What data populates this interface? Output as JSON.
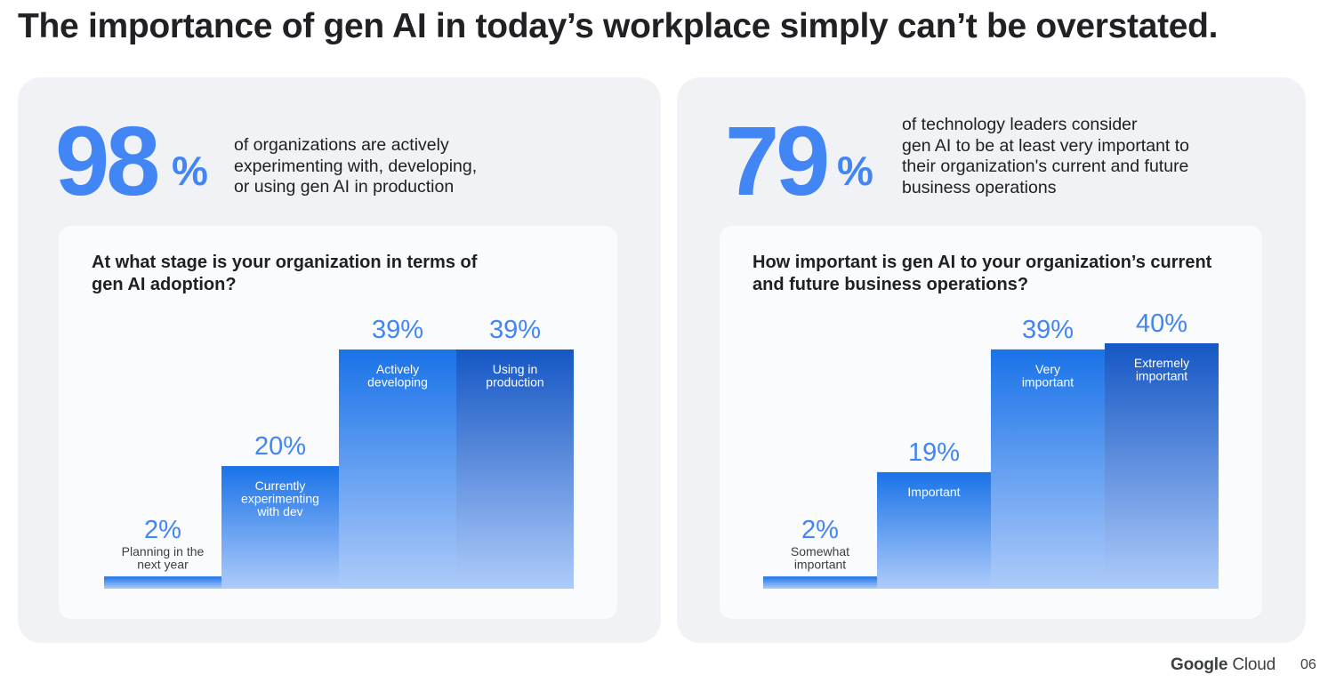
{
  "page_title": "The importance of gen AI in today’s workplace simply can’t be overstated.",
  "left_panel": {
    "stat_value": "98",
    "stat_unit": "%",
    "stat_lines": [
      "of organizations are actively",
      "experimenting with, developing,",
      "or using gen AI in production"
    ]
  },
  "right_panel": {
    "stat_value": "79",
    "stat_unit": "%",
    "stat_lines": [
      "of technology leaders consider",
      "gen AI to be at least very important to",
      "their organization's current and future",
      "business operations"
    ]
  },
  "chart_data": [
    {
      "type": "bar",
      "title_lines": [
        "At what stage is your organization in terms of",
        "gen AI adoption?"
      ],
      "categories": [
        [
          "Planning in the",
          "next year"
        ],
        [
          "Currently",
          "experimenting",
          "with dev"
        ],
        [
          "Actively",
          "developing"
        ],
        [
          "Using in",
          "production"
        ]
      ],
      "values": [
        2,
        20,
        39,
        39
      ],
      "value_labels": [
        "2%",
        "20%",
        "39%",
        "39%"
      ],
      "xlabel": "",
      "ylabel": "",
      "ylim": [
        0,
        39
      ],
      "grid": false,
      "colors": {
        "value_text": "#4285f4",
        "bar_top": "#1a73e8",
        "bar_bottom": "#aecbfa",
        "bar_alt_top": "#1557c4"
      }
    },
    {
      "type": "bar",
      "title_lines": [
        "How important is gen AI to your organization’s current",
        "and future business operations?"
      ],
      "categories": [
        [
          "Somewhat",
          "important"
        ],
        [
          "Important"
        ],
        [
          "Very",
          "important"
        ],
        [
          "Extremely",
          "important"
        ]
      ],
      "values": [
        2,
        19,
        39,
        40
      ],
      "value_labels": [
        "2%",
        "19%",
        "39%",
        "40%"
      ],
      "xlabel": "",
      "ylabel": "",
      "ylim": [
        0,
        40
      ],
      "grid": false,
      "colors": {
        "value_text": "#4285f4",
        "bar_top": "#1a73e8",
        "bar_bottom": "#aecbfa",
        "bar_alt_top": "#1557c4"
      }
    }
  ],
  "footer": {
    "brand_first": "Google",
    "brand_second": "Cloud",
    "page_number": "06"
  }
}
